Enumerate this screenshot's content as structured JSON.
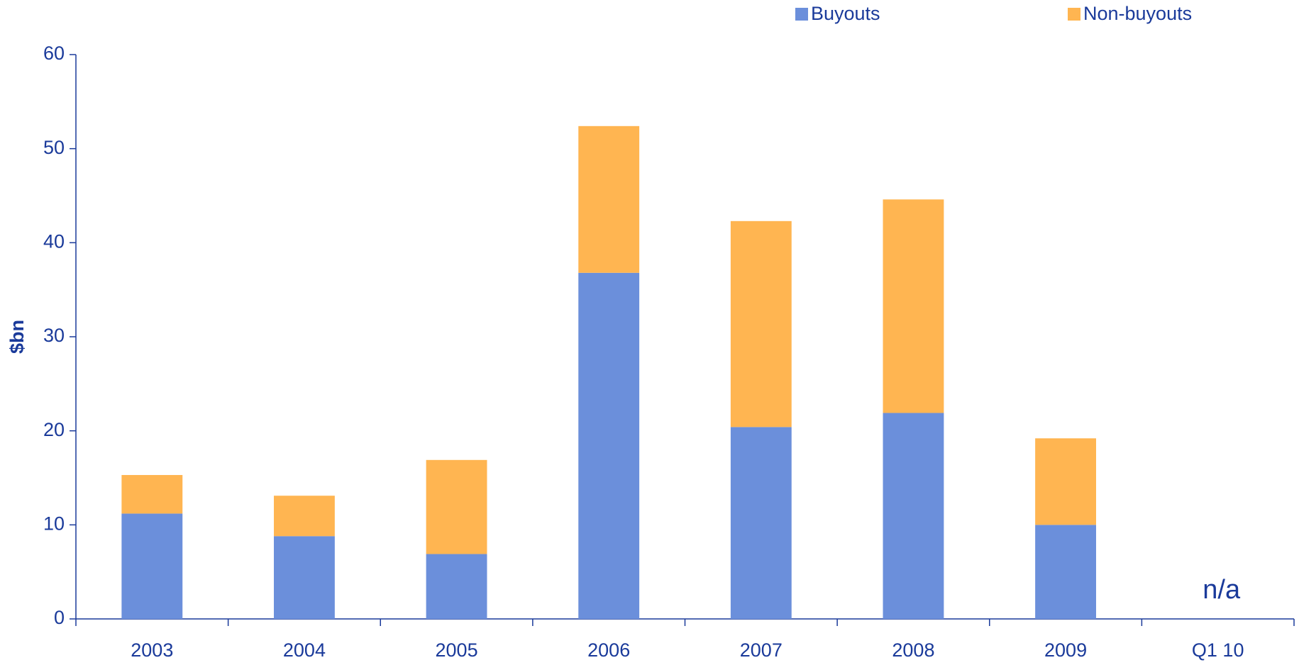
{
  "chart_data": {
    "type": "stacked_bar",
    "y_label": "$bn",
    "categories": [
      "2003",
      "2004",
      "2005",
      "2006",
      "2007",
      "2008",
      "2009",
      "Q1 10"
    ],
    "series": [
      {
        "name": "Buyouts",
        "color": "#6b8fdb",
        "values": [
          11.2,
          8.8,
          6.9,
          36.8,
          20.4,
          21.9,
          10.0,
          null
        ]
      },
      {
        "name": "Non-buyouts",
        "color": "#ffb551",
        "values": [
          4.1,
          4.3,
          10.0,
          15.6,
          21.9,
          22.7,
          9.2,
          null
        ]
      }
    ],
    "annotation": "n/a",
    "ylim": [
      0,
      60
    ],
    "yticks": [
      0,
      10,
      20,
      30,
      40,
      50,
      60
    ],
    "grid": false,
    "legend": "top-right"
  }
}
